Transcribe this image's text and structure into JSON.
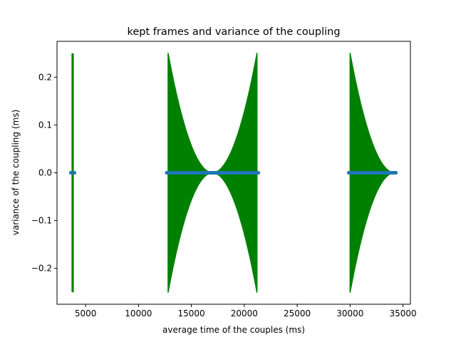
{
  "chart_data": {
    "type": "error-bar",
    "title": "kept frames and variance of the coupling",
    "xlabel": "average time of the couples (ms)",
    "ylabel": "variance of the coupling (ms)",
    "xlim": [
      2300,
      35700
    ],
    "ylim": [
      -0.275,
      0.275
    ],
    "xticks": [
      5000,
      10000,
      15000,
      20000,
      25000,
      30000,
      35000
    ],
    "yticks": [
      -0.2,
      -0.1,
      0.0,
      0.1,
      0.2
    ],
    "ytick_labels": [
      "−0.2",
      "−0.1",
      "0.0",
      "0.1",
      "0.2"
    ],
    "grid": false,
    "legend": "none",
    "colors": {
      "errorbar": "#008000",
      "points": "#1f77b4"
    },
    "segments": [
      {
        "x_start": 3740,
        "x_end": 3820,
        "half_width_start": 0.25,
        "half_width_end": 0.25,
        "shape": "constant"
      },
      {
        "x_start": 12800,
        "x_end": 21200,
        "half_width_start": 0.25,
        "half_width_end": 0.25,
        "x_min": 17000,
        "half_width_min": 0.0,
        "shape": "valley"
      },
      {
        "x_start": 30000,
        "x_end": 34200,
        "half_width_start": 0.25,
        "half_width_end": 0.0,
        "shape": "decay"
      }
    ],
    "series_points_y": 0.0
  }
}
